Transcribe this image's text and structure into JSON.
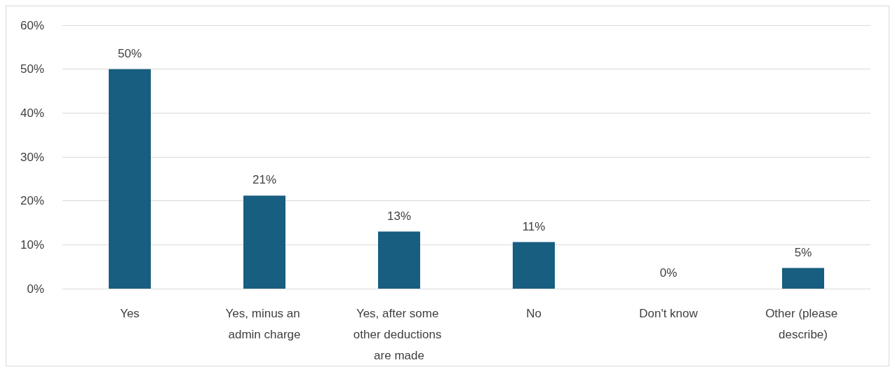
{
  "chart_data": {
    "type": "bar",
    "categories": [
      "Yes",
      "Yes, minus an admin charge",
      "Yes, after some other deductions are made",
      "No",
      "Don't know",
      "Other (please describe)"
    ],
    "values": [
      50,
      21.2,
      13,
      10.6,
      0,
      4.7
    ],
    "value_labels": [
      "50%",
      "21%",
      "13%",
      "11%",
      "0%",
      "5%"
    ],
    "color": "#175e80",
    "ylim": [
      0,
      60
    ],
    "yticks": [
      {
        "value": 0,
        "label": "0%"
      },
      {
        "value": 10,
        "label": "10%"
      },
      {
        "value": 20,
        "label": "20%"
      },
      {
        "value": 30,
        "label": "30%"
      },
      {
        "value": 40,
        "label": "40%"
      },
      {
        "value": 50,
        "label": "50%"
      },
      {
        "value": 60,
        "label": "60%"
      }
    ],
    "grid": "y"
  }
}
